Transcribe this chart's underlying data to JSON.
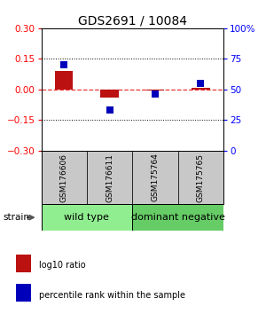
{
  "title": "GDS2691 / 10084",
  "samples": [
    "GSM176606",
    "GSM176611",
    "GSM175764",
    "GSM175765"
  ],
  "log10_ratio": [
    0.09,
    -0.04,
    -0.005,
    0.01
  ],
  "percentile_rank": [
    70,
    33,
    46,
    55
  ],
  "ylim_left": [
    -0.3,
    0.3
  ],
  "ylim_right": [
    0,
    100
  ],
  "yticks_left": [
    -0.3,
    -0.15,
    0,
    0.15,
    0.3
  ],
  "yticks_right": [
    0,
    25,
    50,
    75,
    100
  ],
  "ytick_labels_right": [
    "0",
    "25",
    "50",
    "75",
    "100%"
  ],
  "hlines": [
    0.15,
    -0.15
  ],
  "groups": [
    {
      "label": "wild type",
      "start": 0,
      "end": 2,
      "color": "#90EE90"
    },
    {
      "label": "dominant negative",
      "start": 2,
      "end": 4,
      "color": "#66CC66"
    }
  ],
  "bar_color": "#BB1111",
  "point_color": "#0000BB",
  "zero_line_color": "#EE3333",
  "bar_width": 0.4,
  "point_size": 40,
  "legend_items": [
    {
      "color": "#BB1111",
      "label": "log10 ratio"
    },
    {
      "color": "#0000BB",
      "label": "percentile rank within the sample"
    }
  ],
  "strain_label": "strain",
  "title_fontsize": 10,
  "label_fontsize": 6.5,
  "group_fontsize": 8,
  "tick_fontsize": 7.5
}
